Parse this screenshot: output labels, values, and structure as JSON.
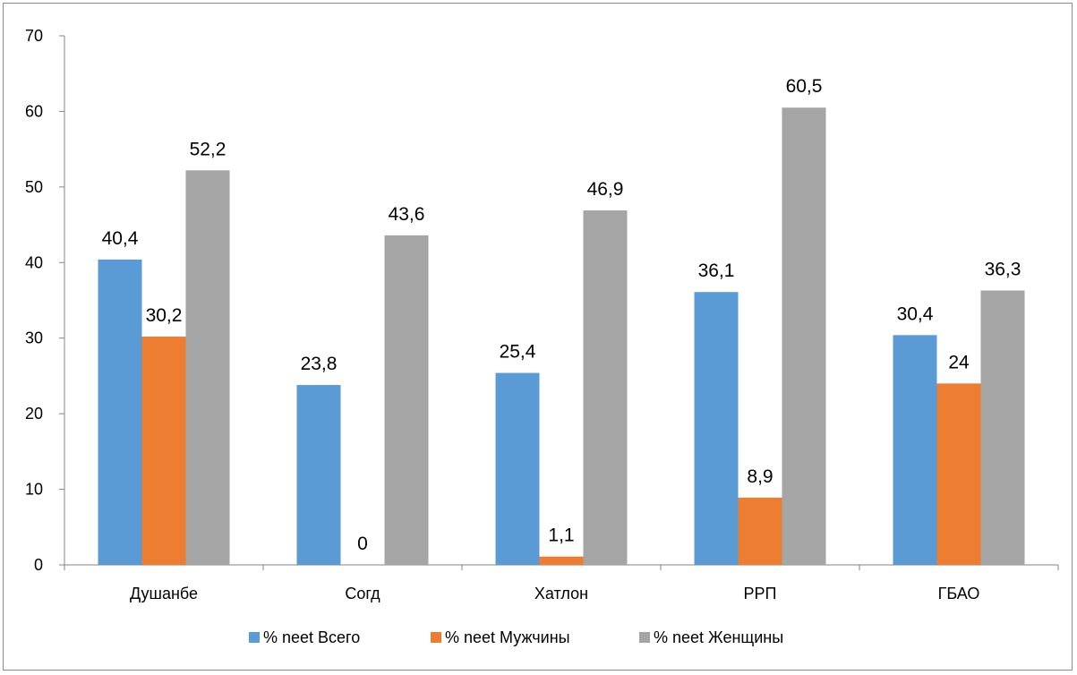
{
  "chart_data": {
    "type": "bar",
    "categories": [
      "Душанбе",
      "Согд",
      "Хатлон",
      "РРП",
      "ГБАО"
    ],
    "series": [
      {
        "name": "% neet Всего",
        "color": "#5b9bd5",
        "values": [
          40.4,
          23.8,
          25.4,
          36.1,
          30.4
        ],
        "labels": [
          "40,4",
          "23,8",
          "25,4",
          "36,1",
          "30,4"
        ]
      },
      {
        "name": "% neet Мужчины",
        "color": "#ed7d31",
        "values": [
          30.2,
          0,
          1.1,
          8.9,
          24
        ],
        "labels": [
          "30,2",
          "0",
          "1,1",
          "8,9",
          "24"
        ]
      },
      {
        "name": "% neet Женщины",
        "color": "#a5a5a5",
        "values": [
          52.2,
          43.6,
          46.9,
          60.5,
          36.3
        ],
        "labels": [
          "52,2",
          "43,6",
          "46,9",
          "60,5",
          "36,3"
        ]
      }
    ],
    "yticks": [
      "0",
      "10",
      "20",
      "30",
      "40",
      "50",
      "60",
      "70"
    ],
    "ylim": [
      0,
      70
    ],
    "grid": false,
    "legend": "bottom",
    "title": "",
    "xlabel": "",
    "ylabel": ""
  }
}
